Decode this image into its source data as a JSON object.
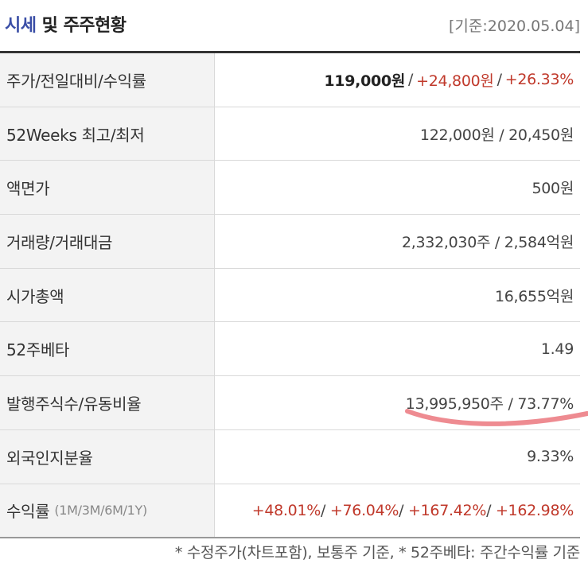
{
  "header": {
    "title_accent": "시세",
    "title_rest": " 및 주주현황",
    "date": "[기준:2020.05.04]"
  },
  "rows": [
    {
      "label": "주가/전일대비/수익률",
      "price": "119,000원",
      "sep1": "/",
      "change": "+24,800원",
      "sep2": "/",
      "rate": "+26.33%"
    },
    {
      "label": "52Weeks 최고/최저",
      "value": "122,000원 / 20,450원"
    },
    {
      "label": "액면가",
      "value": "500원"
    },
    {
      "label": "거래량/거래대금",
      "value": "2,332,030주 / 2,584억원"
    },
    {
      "label": "시가총액",
      "value": "16,655억원"
    },
    {
      "label": "52주베타",
      "value": "1.49"
    },
    {
      "label": "발행주식수/유동비율",
      "value": "13,995,950주 / 73.77%"
    },
    {
      "label": "외국인지분율",
      "value": "9.33%"
    },
    {
      "label": "수익률",
      "sublabel": "(1M/3M/6M/1Y)",
      "r1": "+48.01%",
      "r2": "+76.04%",
      "r3": "+167.42%",
      "r4": "+162.98%",
      "sep": "/"
    }
  ],
  "footnote": "* 수정주가(차트포함), 보통주 기준, * 52주베타: 주간수익률 기준",
  "colors": {
    "accent": "#3a4ea6",
    "positive": "#c0392b",
    "highlight_stroke": "#e8646c"
  }
}
